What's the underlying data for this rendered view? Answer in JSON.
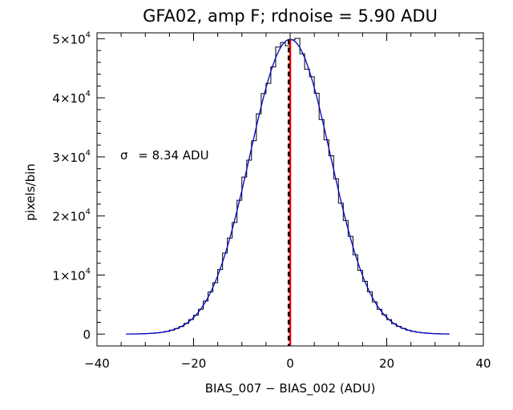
{
  "chart_data": {
    "type": "line",
    "title": "GFA02, amp F; rdnoise = 5.90 ADU",
    "xlabel": "BIAS_007 − BIAS_002 (ADU)",
    "ylabel": "pixels/bin",
    "xlim": [
      -40,
      40
    ],
    "ylim": [
      -2000,
      51000
    ],
    "xticks": [
      -40,
      -20,
      0,
      20,
      40
    ],
    "yticks": [
      {
        "value": 0,
        "mantissa": "0",
        "exp": ""
      },
      {
        "value": 10000,
        "mantissa": "1×10",
        "exp": "4"
      },
      {
        "value": 20000,
        "mantissa": "2×10",
        "exp": "4"
      },
      {
        "value": 30000,
        "mantissa": "3×10",
        "exp": "4"
      },
      {
        "value": 40000,
        "mantissa": "4×10",
        "exp": "4"
      },
      {
        "value": 50000,
        "mantissa": "5×10",
        "exp": "4"
      }
    ],
    "annotation": {
      "symbol": "σ",
      "text": "= 8.34 ADU"
    },
    "gaussian_fit": {
      "amplitude": 49900,
      "mean": 0,
      "sigma": 8.34
    },
    "histogram": {
      "bin_width": 1,
      "x_min": -33,
      "x_max": 32
    },
    "vlines": [
      {
        "x": 0,
        "color": "#ff0000",
        "style": "solid"
      },
      {
        "x": -0.3,
        "color": "#000000",
        "style": "dashed"
      }
    ],
    "series": [
      {
        "type": "step",
        "color": "#000000"
      },
      {
        "type": "line",
        "color": "#0000cc"
      }
    ]
  }
}
